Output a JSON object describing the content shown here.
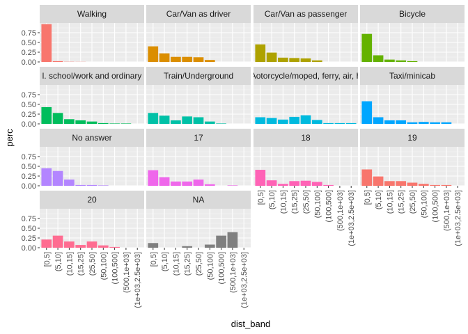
{
  "chart_data": {
    "type": "bar",
    "layout": "facet_wrap",
    "xlabel": "dist_band",
    "ylabel": "perc",
    "ylim": [
      0,
      1.0
    ],
    "y_ticks": [
      "0.00",
      "0.25",
      "0.50",
      "0.75"
    ],
    "y_tick_values": [
      0,
      0.25,
      0.5,
      0.75
    ],
    "grid": true,
    "legend": "none",
    "categories": [
      "[0,5]",
      "(5,10]",
      "(10,15]",
      "(15,25]",
      "(25,50]",
      "(50,100]",
      "(100,500]",
      "(500,1e+03]",
      "(1e+03,2.5e+03]"
    ],
    "series": [
      {
        "name": "Walking",
        "color": "#F8766D",
        "values": [
          0.97,
          0.02,
          0.005,
          0.003,
          0,
          0,
          0,
          0,
          0
        ]
      },
      {
        "name": "Car/Van as driver",
        "color": "#DB8E00",
        "values": [
          0.4,
          0.22,
          0.13,
          0.13,
          0.12,
          0.05,
          0,
          0,
          0
        ]
      },
      {
        "name": "Car/Van as passenger",
        "color": "#AEA200",
        "values": [
          0.45,
          0.24,
          0.11,
          0.1,
          0.09,
          0.04,
          0,
          0,
          0
        ]
      },
      {
        "name": "Bicycle",
        "color": "#64B200",
        "values": [
          0.72,
          0.17,
          0.06,
          0.04,
          0.02,
          0,
          0,
          0,
          0
        ]
      },
      {
        "name": "Bus, minibus, coach - incl. school/work and ordinary",
        "color": "#00BD5C",
        "values": [
          0.43,
          0.28,
          0.12,
          0.09,
          0.06,
          0.02,
          0.01,
          0.01,
          0
        ]
      },
      {
        "name": "Train/Underground",
        "color": "#00C1A7",
        "values": [
          0.28,
          0.21,
          0.09,
          0.19,
          0.17,
          0.06,
          0.01,
          0,
          0
        ]
      },
      {
        "name": "Motorcycle/moped, ferry, air, horse",
        "color": "#00BADE",
        "values": [
          0.17,
          0.15,
          0.11,
          0.18,
          0.22,
          0.1,
          0.02,
          0.02,
          0.02
        ]
      },
      {
        "name": "Taxi/minicab",
        "color": "#00A6FF",
        "values": [
          0.58,
          0.17,
          0.09,
          0.09,
          0.04,
          0.05,
          0.04,
          0.04,
          0
        ]
      },
      {
        "name": "No answer",
        "color": "#B385FF",
        "values": [
          0.45,
          0.38,
          0.16,
          0.02,
          0.02,
          0.01,
          0,
          0,
          0
        ]
      },
      {
        "name": "17",
        "color": "#EF67EB",
        "values": [
          0.4,
          0.22,
          0.11,
          0.11,
          0.16,
          0.04,
          0,
          0.01,
          0
        ]
      },
      {
        "name": "18",
        "color": "#FF63B6",
        "values": [
          0.41,
          0.14,
          0.05,
          0.12,
          0.13,
          0.1,
          0.02,
          0,
          0
        ]
      },
      {
        "name": "19",
        "color": "#F8766D",
        "values": [
          0.42,
          0.24,
          0.12,
          0.12,
          0.08,
          0.05,
          0.02,
          0.02,
          0
        ]
      },
      {
        "name": "20",
        "color": "#FF6C91",
        "values": [
          0.21,
          0.31,
          0.16,
          0.07,
          0.16,
          0.06,
          0.02,
          0,
          0
        ]
      },
      {
        "name": "NA",
        "color": "#7F7F7F",
        "values": [
          0.12,
          0,
          0,
          0.04,
          0,
          0.08,
          0.31,
          0.4,
          0
        ]
      }
    ],
    "facet_labels": [
      "Walking",
      "Car/Van as driver",
      "Car/Van as passenger",
      "Bicycle",
      "l. school/work and ordinary",
      "Train/Underground",
      "Aotorcycle/moped, ferry, air, h",
      "Taxi/minicab",
      "No answer",
      "17",
      "18",
      "19",
      "20",
      "NA"
    ]
  }
}
